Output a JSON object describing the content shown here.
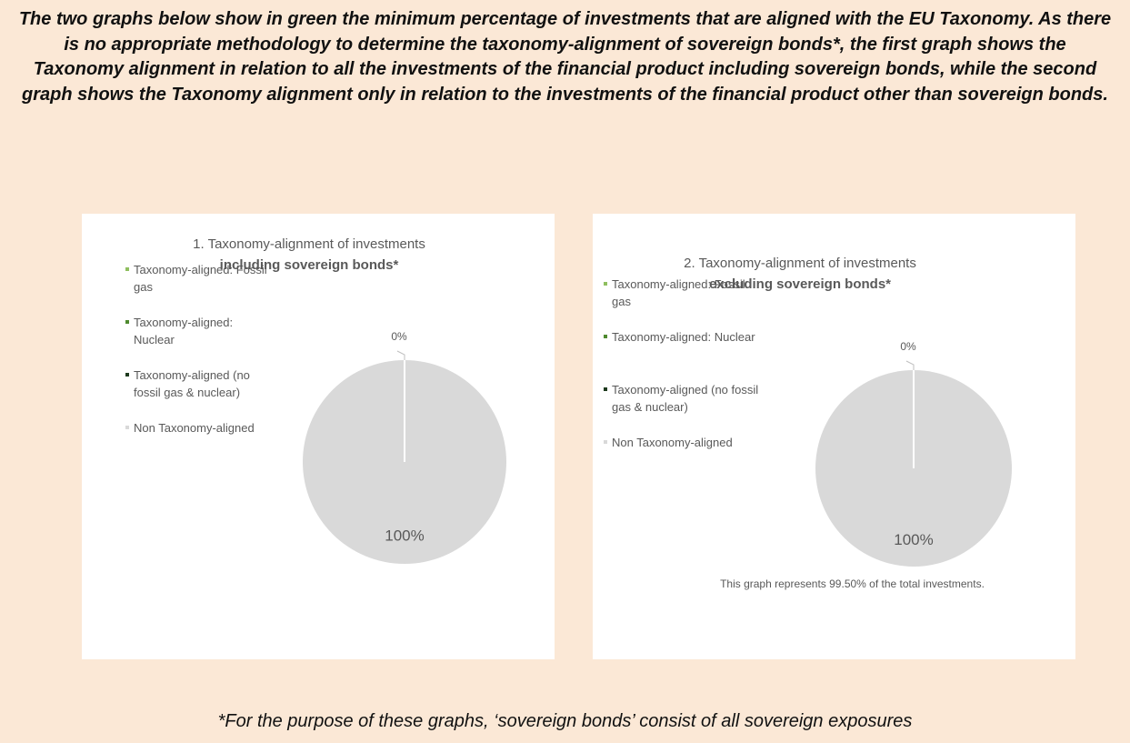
{
  "intro": "The two graphs below show in green the minimum percentage of investments that are aligned with the EU Taxonomy. As there is no appropriate methodology to determine the taxonomy-alignment of sovereign bonds*, the first graph shows the Taxonomy alignment in relation to all the investments of the financial product including sovereign bonds, while the second graph shows the Taxonomy alignment only in relation to the investments of the financial product other than sovereign bonds.",
  "chart_data": [
    {
      "type": "pie",
      "title": "1. Taxonomy-alignment of investments",
      "subtitle": "including sovereign bonds*",
      "categories": [
        "Taxonomy-aligned: Fossil gas",
        "Taxonomy-aligned: Nuclear",
        "Taxonomy-aligned (no fossil gas & nuclear)",
        "Non Taxonomy-aligned"
      ],
      "values": [
        0,
        0,
        0,
        100
      ],
      "value_labels": [
        "0%",
        null,
        null,
        "100%"
      ],
      "colors": [
        "#8fbf5f",
        "#4f8a2f",
        "#1e3a1e",
        "#d9d9d9"
      ]
    },
    {
      "type": "pie",
      "title": "2. Taxonomy-alignment of investments",
      "subtitle": "excluding sovereign bonds*",
      "categories": [
        "Taxonomy-aligned: Fossil gas",
        "Taxonomy-aligned: Nuclear",
        "Taxonomy-aligned (no fossil gas & nuclear)",
        "Non Taxonomy-aligned"
      ],
      "values": [
        0,
        0,
        0,
        100
      ],
      "value_labels": [
        "0%",
        null,
        null,
        "100%"
      ],
      "colors": [
        "#8fbf5f",
        "#4f8a2f",
        "#1e3a1e",
        "#d9d9d9"
      ],
      "annotation": "This graph represents 99.50% of the total investments."
    }
  ],
  "footnote": "*For the purpose of these graphs, ‘sovereign bonds’ consist of all sovereign exposures"
}
